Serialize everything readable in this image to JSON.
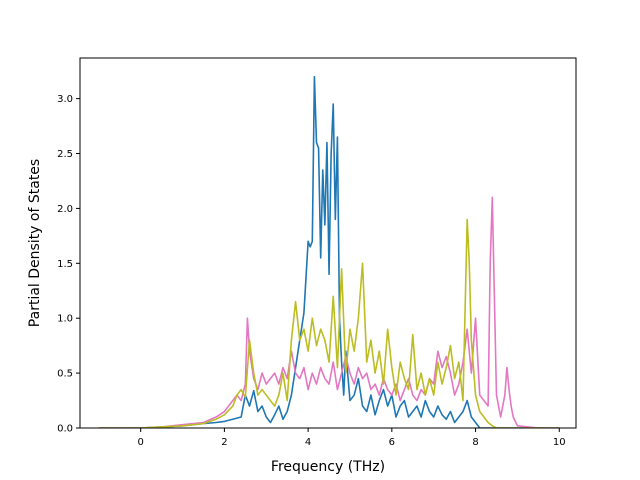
{
  "chart_data": {
    "type": "line",
    "title": "",
    "xlabel": "Frequency (THz)",
    "ylabel": "Partial Density of States",
    "xlim": [
      -1.45,
      10.4
    ],
    "ylim": [
      0.0,
      3.37
    ],
    "xticks": [
      0,
      2,
      4,
      6,
      8,
      10
    ],
    "xtick_labels": [
      "0",
      "2",
      "4",
      "6",
      "8",
      "10"
    ],
    "yticks": [
      0.0,
      0.5,
      1.0,
      1.5,
      2.0,
      2.5,
      3.0
    ],
    "ytick_labels": [
      "0.0",
      "0.5",
      "1.0",
      "1.5",
      "2.0",
      "2.5",
      "3.0"
    ],
    "grid": false,
    "legend": "none",
    "series": [
      {
        "color": "#1f77b4",
        "x": [
          -1.0,
          -0.5,
          0.0,
          0.5,
          1.0,
          1.5,
          1.8,
          2.0,
          2.2,
          2.4,
          2.5,
          2.6,
          2.7,
          2.8,
          2.9,
          3.0,
          3.1,
          3.2,
          3.3,
          3.4,
          3.5,
          3.6,
          3.7,
          3.8,
          3.9,
          4.0,
          4.05,
          4.1,
          4.15,
          4.2,
          4.25,
          4.3,
          4.35,
          4.4,
          4.45,
          4.5,
          4.55,
          4.6,
          4.65,
          4.7,
          4.75,
          4.8,
          4.85,
          4.9,
          5.0,
          5.1,
          5.2,
          5.3,
          5.4,
          5.5,
          5.6,
          5.7,
          5.8,
          5.9,
          6.0,
          6.1,
          6.2,
          6.3,
          6.4,
          6.5,
          6.6,
          6.7,
          6.8,
          6.9,
          7.0,
          7.1,
          7.2,
          7.3,
          7.4,
          7.5,
          7.6,
          7.7,
          7.8,
          7.9,
          8.0,
          8.1,
          8.2,
          8.3,
          8.4,
          8.5,
          8.6,
          8.7,
          8.8,
          8.9,
          9.0,
          9.5,
          10.0
        ],
        "y": [
          0.0,
          0.0,
          0.0,
          0.01,
          0.02,
          0.04,
          0.05,
          0.06,
          0.08,
          0.1,
          0.3,
          0.2,
          0.34,
          0.15,
          0.2,
          0.1,
          0.05,
          0.12,
          0.2,
          0.08,
          0.15,
          0.3,
          0.55,
          0.8,
          1.05,
          1.7,
          1.65,
          1.7,
          3.2,
          2.6,
          2.55,
          1.55,
          2.35,
          1.85,
          2.6,
          1.4,
          2.5,
          2.95,
          1.9,
          2.65,
          1.0,
          0.6,
          0.3,
          0.7,
          0.25,
          0.3,
          0.45,
          0.2,
          0.15,
          0.3,
          0.12,
          0.25,
          0.35,
          0.2,
          0.3,
          0.1,
          0.2,
          0.25,
          0.1,
          0.15,
          0.2,
          0.1,
          0.25,
          0.15,
          0.1,
          0.2,
          0.12,
          0.08,
          0.15,
          0.05,
          0.1,
          0.15,
          0.25,
          0.1,
          0.05,
          0.0,
          0.0,
          0.0,
          0.0,
          0.0,
          0.0,
          0.0,
          0.0,
          0.0,
          0.0,
          0.0,
          0.0
        ]
      },
      {
        "color": "#e377c2",
        "x": [
          -1.0,
          -0.5,
          0.0,
          0.5,
          1.0,
          1.5,
          1.8,
          2.0,
          2.2,
          2.3,
          2.4,
          2.5,
          2.55,
          2.6,
          2.7,
          2.8,
          2.9,
          3.0,
          3.1,
          3.2,
          3.3,
          3.4,
          3.5,
          3.6,
          3.7,
          3.8,
          3.9,
          4.0,
          4.1,
          4.2,
          4.3,
          4.4,
          4.5,
          4.6,
          4.7,
          4.8,
          4.9,
          5.0,
          5.1,
          5.2,
          5.3,
          5.4,
          5.5,
          5.6,
          5.7,
          5.8,
          5.9,
          6.0,
          6.1,
          6.2,
          6.3,
          6.4,
          6.5,
          6.6,
          6.7,
          6.8,
          6.9,
          7.0,
          7.1,
          7.2,
          7.3,
          7.4,
          7.5,
          7.6,
          7.7,
          7.8,
          7.9,
          8.0,
          8.1,
          8.2,
          8.3,
          8.35,
          8.4,
          8.45,
          8.5,
          8.6,
          8.7,
          8.75,
          8.8,
          8.85,
          8.9,
          9.0,
          9.5,
          10.0
        ],
        "y": [
          0.0,
          0.0,
          0.0,
          0.01,
          0.03,
          0.05,
          0.1,
          0.15,
          0.25,
          0.3,
          0.25,
          0.4,
          1.0,
          0.7,
          0.45,
          0.35,
          0.5,
          0.4,
          0.45,
          0.5,
          0.4,
          0.55,
          0.45,
          0.7,
          0.5,
          0.45,
          0.55,
          0.35,
          0.5,
          0.4,
          0.55,
          0.45,
          0.4,
          0.6,
          0.35,
          0.5,
          0.65,
          0.5,
          0.4,
          0.55,
          0.45,
          0.5,
          0.35,
          0.4,
          0.3,
          0.45,
          0.35,
          0.3,
          0.4,
          0.25,
          0.35,
          0.45,
          0.3,
          0.25,
          0.35,
          0.3,
          0.45,
          0.4,
          0.7,
          0.55,
          0.65,
          0.5,
          0.3,
          0.4,
          0.6,
          0.9,
          0.5,
          1.0,
          0.3,
          0.25,
          0.2,
          1.5,
          2.1,
          1.2,
          0.3,
          0.1,
          0.3,
          0.55,
          0.35,
          0.2,
          0.1,
          0.02,
          0.0,
          0.0
        ]
      },
      {
        "color": "#bcbd22",
        "x": [
          -1.0,
          -0.5,
          0.0,
          0.5,
          1.0,
          1.5,
          1.8,
          2.0,
          2.2,
          2.3,
          2.4,
          2.5,
          2.6,
          2.7,
          2.8,
          2.9,
          3.0,
          3.1,
          3.2,
          3.3,
          3.4,
          3.5,
          3.6,
          3.7,
          3.8,
          3.9,
          4.0,
          4.1,
          4.2,
          4.3,
          4.4,
          4.5,
          4.6,
          4.7,
          4.8,
          4.9,
          5.0,
          5.1,
          5.2,
          5.3,
          5.4,
          5.5,
          5.6,
          5.7,
          5.8,
          5.9,
          6.0,
          6.1,
          6.2,
          6.3,
          6.4,
          6.5,
          6.6,
          6.7,
          6.8,
          6.9,
          7.0,
          7.1,
          7.2,
          7.3,
          7.4,
          7.5,
          7.6,
          7.7,
          7.8,
          7.85,
          7.9,
          8.0,
          8.1,
          8.2,
          8.3,
          8.4,
          8.5,
          8.6,
          8.7,
          8.8,
          8.9,
          9.0,
          9.5,
          10.0
        ],
        "y": [
          0.0,
          0.0,
          0.0,
          0.01,
          0.02,
          0.04,
          0.08,
          0.12,
          0.2,
          0.3,
          0.35,
          0.28,
          0.8,
          0.5,
          0.3,
          0.35,
          0.3,
          0.25,
          0.2,
          0.3,
          0.5,
          0.25,
          0.8,
          1.15,
          0.8,
          0.9,
          0.7,
          1.0,
          0.75,
          0.9,
          0.8,
          0.6,
          1.2,
          0.55,
          1.45,
          0.5,
          0.9,
          0.7,
          1.0,
          1.5,
          0.6,
          0.8,
          0.5,
          0.7,
          0.4,
          0.9,
          0.55,
          0.3,
          0.6,
          0.45,
          0.35,
          0.85,
          0.35,
          0.5,
          0.3,
          0.45,
          0.3,
          0.6,
          0.4,
          0.55,
          0.75,
          0.45,
          0.6,
          0.25,
          1.9,
          1.5,
          0.8,
          0.3,
          0.15,
          0.1,
          0.05,
          0.02,
          0.0,
          0.0,
          0.0,
          0.0,
          0.0,
          0.0,
          0.0,
          0.0
        ]
      }
    ]
  }
}
